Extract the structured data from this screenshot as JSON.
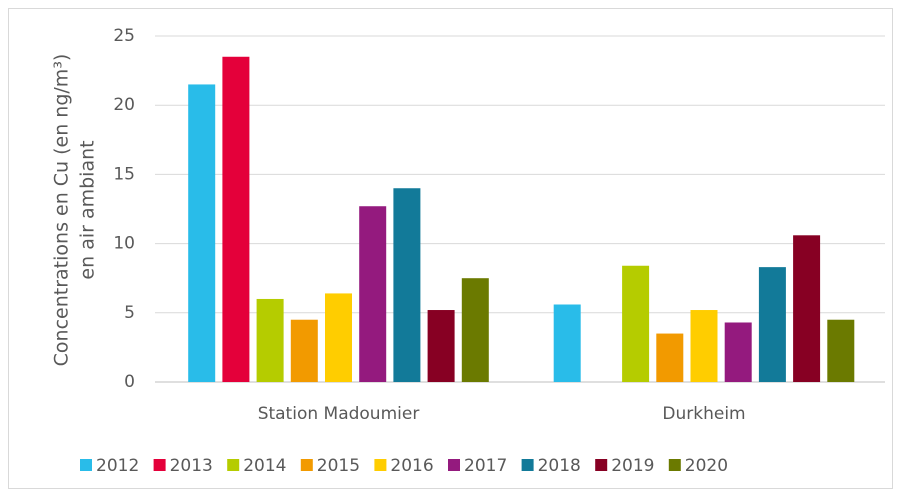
{
  "chart_data": {
    "type": "bar",
    "ylabel": [
      "Concentrations en Cu (en ng/m³)",
      "en air ambiant"
    ],
    "categories": [
      "Station Madoumier",
      "Durkheim"
    ],
    "series": [
      {
        "name": "2012",
        "color": "#29bce9",
        "values": [
          21.5,
          5.6
        ]
      },
      {
        "name": "2013",
        "color": "#e4003a",
        "values": [
          23.5,
          null
        ]
      },
      {
        "name": "2014",
        "color": "#b5cc00",
        "values": [
          6,
          8.4
        ]
      },
      {
        "name": "2015",
        "color": "#f29a00",
        "values": [
          4.5,
          3.5
        ]
      },
      {
        "name": "2016",
        "color": "#ffcd00",
        "values": [
          6.4,
          5.2
        ]
      },
      {
        "name": "2017",
        "color": "#941a7e",
        "values": [
          12.7,
          4.3
        ]
      },
      {
        "name": "2018",
        "color": "#127a99",
        "values": [
          14,
          8.3
        ]
      },
      {
        "name": "2019",
        "color": "#870023",
        "values": [
          5.2,
          10.6
        ]
      },
      {
        "name": "2020",
        "color": "#6b7a00",
        "values": [
          7.5,
          4.5
        ]
      }
    ],
    "ylim": [
      0,
      25
    ],
    "yticks": [
      0,
      5,
      10,
      15,
      20,
      25
    ],
    "grid": true,
    "legend": "bottom"
  }
}
